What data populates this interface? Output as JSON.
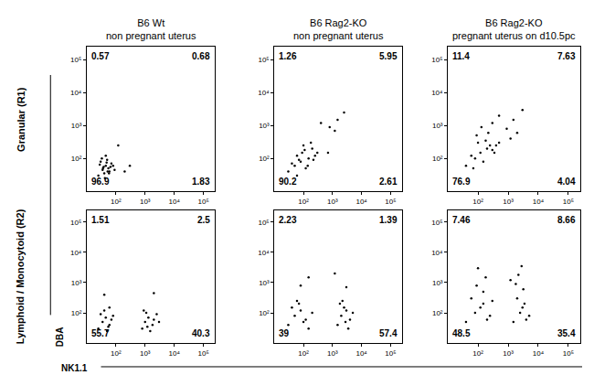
{
  "figure": {
    "row_labels": [
      "Granular (R1)",
      "Lymphoid / Monocytoid (R2)"
    ],
    "x_label": "NK1.1",
    "y_label": "DBA"
  },
  "chart_data": [
    {
      "type": "scatter",
      "title": "B6 Wt\nnon pregnant uterus",
      "color": "#000000",
      "marker": "dot",
      "log": true,
      "xlim": [
        10,
        250000
      ],
      "ylim": [
        10,
        250000
      ],
      "xticks": [
        {
          "value": 100,
          "label": "10²"
        },
        {
          "value": 1000,
          "label": "10³"
        },
        {
          "value": 10000,
          "label": "10⁴"
        },
        {
          "value": 100000,
          "label": "10⁵"
        }
      ],
      "yticks": [
        {
          "value": 100,
          "label": "10²"
        },
        {
          "value": 1000,
          "label": "10³"
        },
        {
          "value": 10000,
          "label": "10⁴"
        },
        {
          "value": 100000,
          "label": "10⁵"
        }
      ],
      "gates": {
        "x": 150,
        "y": 180
      },
      "quadrants": {
        "upper_left": 0.57,
        "upper_right": 0.68,
        "lower_left": 96.9,
        "lower_right": 1.83
      },
      "x": [
        25,
        35,
        45,
        55,
        30,
        40,
        60,
        70,
        50,
        38,
        28,
        42,
        65,
        33,
        48,
        58,
        80,
        90,
        45,
        52,
        36,
        200,
        300,
        120
      ],
      "y": [
        30,
        45,
        60,
        50,
        80,
        35,
        40,
        70,
        90,
        55,
        65,
        25,
        55,
        100,
        75,
        35,
        60,
        45,
        120,
        40,
        50,
        40,
        60,
        250
      ]
    },
    {
      "type": "scatter",
      "title": "B6 Rag2-KO\nnon pregnant uterus",
      "color": "#000000",
      "marker": "dot",
      "log": true,
      "xlim": [
        10,
        250000
      ],
      "ylim": [
        10,
        250000
      ],
      "xticks": [
        {
          "value": 100,
          "label": "10²"
        },
        {
          "value": 1000,
          "label": "10³"
        },
        {
          "value": 10000,
          "label": "10⁴"
        },
        {
          "value": 100000,
          "label": "10⁵"
        }
      ],
      "yticks": [
        {
          "value": 100,
          "label": "10²"
        },
        {
          "value": 1000,
          "label": "10³"
        },
        {
          "value": 10000,
          "label": "10⁴"
        },
        {
          "value": 100000,
          "label": "10⁵"
        }
      ],
      "gates": {
        "x": 600,
        "y": 400
      },
      "quadrants": {
        "upper_left": 1.26,
        "upper_right": 5.95,
        "lower_left": 90.2,
        "lower_right": 2.61
      },
      "x": [
        30,
        50,
        80,
        120,
        60,
        90,
        150,
        200,
        40,
        70,
        110,
        250,
        180,
        100,
        300,
        140,
        60,
        220,
        800,
        1500,
        2500,
        1200,
        400,
        700
      ],
      "y": [
        40,
        60,
        80,
        50,
        120,
        150,
        100,
        200,
        70,
        90,
        180,
        120,
        300,
        250,
        150,
        60,
        30,
        90,
        900,
        1500,
        2500,
        700,
        1200,
        150
      ]
    },
    {
      "type": "scatter",
      "title": "B6 Rag2-KO\npregnant uterus on d10.5pc",
      "color": "#000000",
      "marker": "dot",
      "log": true,
      "xlim": [
        10,
        250000
      ],
      "ylim": [
        10,
        250000
      ],
      "xticks": [
        {
          "value": 100,
          "label": "10²"
        },
        {
          "value": 1000,
          "label": "10³"
        },
        {
          "value": 10000,
          "label": "10⁴"
        },
        {
          "value": 100000,
          "label": "10⁵"
        }
      ],
      "yticks": [
        {
          "value": 100,
          "label": "10²"
        },
        {
          "value": 1000,
          "label": "10³"
        },
        {
          "value": 10000,
          "label": "10⁴"
        },
        {
          "value": 100000,
          "label": "10⁵"
        }
      ],
      "gates": {
        "x": 700,
        "y": 400
      },
      "quadrants": {
        "upper_left": 11.4,
        "upper_right": 7.63,
        "lower_left": 76.9,
        "lower_right": 4.04
      },
      "x": [
        40,
        80,
        120,
        200,
        60,
        150,
        250,
        300,
        100,
        180,
        400,
        90,
        130,
        500,
        220,
        350,
        70,
        900,
        1500,
        3000,
        1200,
        300,
        500,
        2000
      ],
      "y": [
        60,
        100,
        150,
        200,
        120,
        80,
        250,
        180,
        300,
        350,
        250,
        500,
        900,
        300,
        600,
        150,
        50,
        800,
        1500,
        3000,
        400,
        1200,
        2000,
        600
      ]
    },
    {
      "type": "scatter",
      "color": "#000000",
      "marker": "dot",
      "log": true,
      "xlim": [
        10,
        250000
      ],
      "ylim": [
        10,
        250000
      ],
      "xticks": [
        {
          "value": 100,
          "label": "10²"
        },
        {
          "value": 1000,
          "label": "10³"
        },
        {
          "value": 10000,
          "label": "10⁴"
        },
        {
          "value": 100000,
          "label": "10⁵"
        }
      ],
      "yticks": [
        {
          "value": 100,
          "label": "10²"
        },
        {
          "value": 1000,
          "label": "10³"
        },
        {
          "value": 10000,
          "label": "10⁴"
        },
        {
          "value": 100000,
          "label": "10⁵"
        }
      ],
      "gates": {
        "x": 150,
        "y": 200
      },
      "quadrants": {
        "upper_left": 1.51,
        "upper_right": 2.5,
        "lower_left": 55.7,
        "lower_right": 40.3
      },
      "x": [
        25,
        35,
        45,
        60,
        30,
        50,
        70,
        40,
        55,
        80,
        800,
        1000,
        1300,
        1800,
        2500,
        900,
        1500,
        2000,
        1100,
        3000,
        40,
        2000,
        60,
        1200
      ],
      "y": [
        30,
        50,
        70,
        40,
        90,
        25,
        60,
        120,
        35,
        80,
        30,
        50,
        70,
        40,
        90,
        120,
        25,
        60,
        100,
        50,
        400,
        450,
        150,
        35
      ]
    },
    {
      "type": "scatter",
      "color": "#000000",
      "marker": "dot",
      "log": true,
      "xlim": [
        10,
        250000
      ],
      "ylim": [
        10,
        250000
      ],
      "xticks": [
        {
          "value": 100,
          "label": "10²"
        },
        {
          "value": 1000,
          "label": "10³"
        },
        {
          "value": 10000,
          "label": "10⁴"
        },
        {
          "value": 100000,
          "label": "10⁵"
        }
      ],
      "yticks": [
        {
          "value": 100,
          "label": "10²"
        },
        {
          "value": 1000,
          "label": "10³"
        },
        {
          "value": 10000,
          "label": "10⁴"
        },
        {
          "value": 100000,
          "label": "10⁵"
        }
      ],
      "gates": {
        "x": 600,
        "y": 350
      },
      "quadrants": {
        "upper_left": 2.23,
        "upper_right": 1.39,
        "lower_left": 39,
        "lower_right": 57.4
      },
      "x": [
        30,
        50,
        80,
        120,
        40,
        70,
        150,
        200,
        60,
        100,
        1500,
        2000,
        3000,
        4000,
        2500,
        1800,
        3500,
        5000,
        2200,
        2800,
        80,
        3000,
        150,
        1200
      ],
      "y": [
        40,
        80,
        120,
        60,
        150,
        200,
        30,
        100,
        250,
        50,
        40,
        80,
        120,
        60,
        150,
        200,
        30,
        100,
        250,
        50,
        800,
        700,
        1500,
        2000
      ]
    },
    {
      "type": "scatter",
      "color": "#000000",
      "marker": "dot",
      "log": true,
      "xlim": [
        10,
        250000
      ],
      "ylim": [
        10,
        250000
      ],
      "xticks": [
        {
          "value": 100,
          "label": "10²"
        },
        {
          "value": 1000,
          "label": "10³"
        },
        {
          "value": 10000,
          "label": "10⁴"
        },
        {
          "value": 100000,
          "label": "10⁵"
        }
      ],
      "yticks": [
        {
          "value": 100,
          "label": "10²"
        },
        {
          "value": 1000,
          "label": "10³"
        },
        {
          "value": 10000,
          "label": "10⁴"
        },
        {
          "value": 100000,
          "label": "10⁵"
        }
      ],
      "gates": {
        "x": 700,
        "y": 400
      },
      "quadrants": {
        "upper_left": 7.46,
        "upper_right": 8.66,
        "lower_left": 48.5,
        "lower_right": 35.4
      },
      "x": [
        40,
        80,
        150,
        250,
        60,
        120,
        200,
        300,
        90,
        180,
        100,
        150,
        1500,
        2500,
        3500,
        5000,
        2000,
        3000,
        4000,
        1800,
        2200,
        2800,
        3200,
        1200
      ],
      "y": [
        50,
        100,
        200,
        80,
        300,
        150,
        60,
        250,
        800,
        1500,
        3000,
        500,
        50,
        100,
        200,
        80,
        300,
        150,
        60,
        900,
        1800,
        3500,
        600,
        1200
      ]
    }
  ]
}
